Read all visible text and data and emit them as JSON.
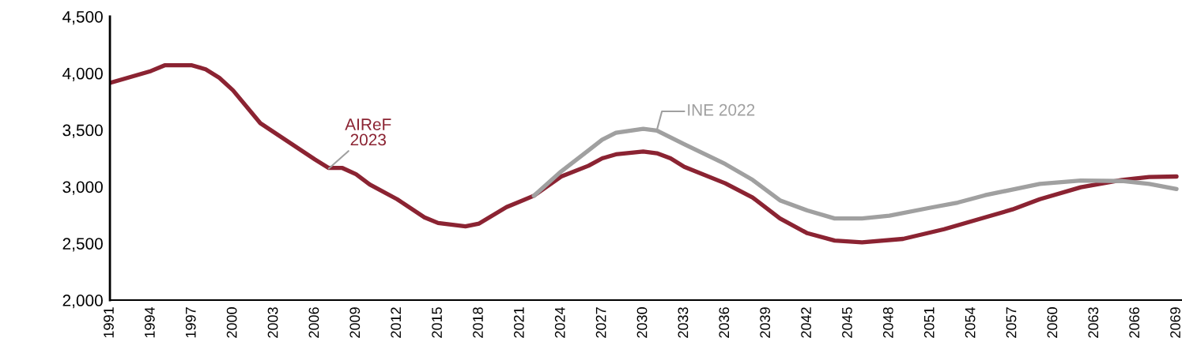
{
  "chart_data": {
    "type": "line",
    "series": [
      {
        "color": "#8b2332",
        "x": [
          1991,
          1992,
          1994,
          1995,
          1997,
          1998,
          1999,
          2000,
          2002,
          2004,
          2006,
          2007,
          2008,
          2009,
          2010,
          2012,
          2014,
          2015,
          2017,
          2018,
          2020,
          2022,
          2024,
          2026,
          2027,
          2028,
          2030,
          2031,
          2032,
          2033,
          2036,
          2038,
          2040,
          2042,
          2044,
          2046,
          2049,
          2052,
          2055,
          2057,
          2059,
          2062,
          2065,
          2067,
          2069
        ],
        "values": [
          3915,
          3950,
          4020,
          4070,
          4070,
          4035,
          3960,
          3850,
          3560,
          3400,
          3240,
          3165,
          3165,
          3110,
          3020,
          2890,
          2730,
          2680,
          2650,
          2675,
          2820,
          2920,
          3090,
          3185,
          3250,
          3285,
          3310,
          3295,
          3250,
          3175,
          3030,
          2905,
          2720,
          2590,
          2525,
          2510,
          2540,
          2625,
          2730,
          2800,
          2890,
          2995,
          3060,
          3085,
          3090
        ]
      },
      {
        "color": "#a0a0a0",
        "x": [
          2022,
          2024,
          2026,
          2027,
          2028,
          2030,
          2031,
          2033,
          2036,
          2038,
          2040,
          2042,
          2044,
          2046,
          2048,
          2051,
          2053,
          2055,
          2059,
          2062,
          2065,
          2067,
          2069
        ],
        "values": [
          2920,
          3135,
          3320,
          3415,
          3475,
          3510,
          3495,
          3375,
          3200,
          3060,
          2880,
          2790,
          2720,
          2720,
          2745,
          2815,
          2860,
          2925,
          3025,
          3055,
          3050,
          3025,
          2980
        ]
      }
    ],
    "annotations": [
      {
        "text": "AIReF\n2023",
        "x": 2007,
        "y": 3160
      },
      {
        "text": "INE 2022",
        "x": 2031,
        "y": 3500
      }
    ],
    "xlim": [
      1991,
      2069.4
    ],
    "xticks": [
      1991,
      1994,
      1997,
      2000,
      2003,
      2006,
      2009,
      2012,
      2015,
      2018,
      2021,
      2024,
      2027,
      2030,
      2033,
      2036,
      2039,
      2042,
      2045,
      2048,
      2051,
      2054,
      2057,
      2060,
      2063,
      2066,
      2069
    ],
    "ylim": [
      2000,
      4500
    ],
    "yticks": [
      {
        "value": 2000,
        "label": "2,000"
      },
      {
        "value": 2500,
        "label": "2,500"
      },
      {
        "value": 3000,
        "label": "3,000"
      },
      {
        "value": 3500,
        "label": "3,500"
      },
      {
        "value": 4000,
        "label": "4,000"
      },
      {
        "value": 4500,
        "label": "4,500"
      }
    ],
    "grid": false,
    "legend": false,
    "marker": "none",
    "line_style": "solid"
  }
}
